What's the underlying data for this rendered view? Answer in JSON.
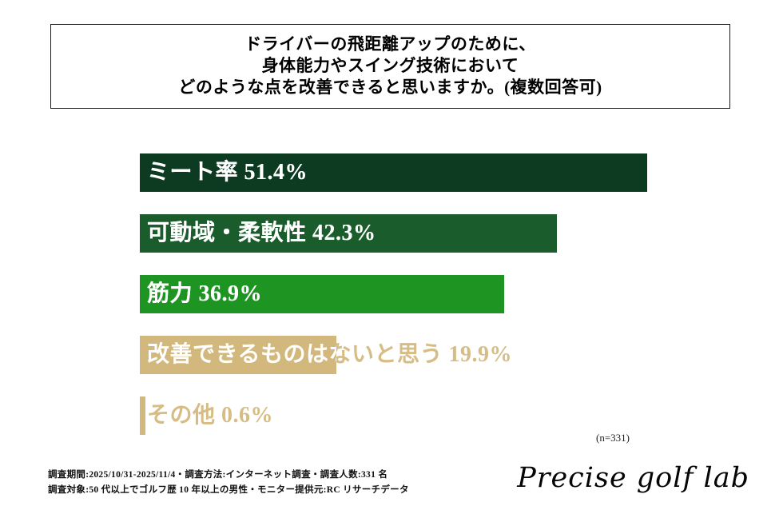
{
  "title": {
    "line1": "ドライバーの飛距離アップのために、",
    "line2": "身体能力やスイング技術において",
    "line3": "どのような点を改善できると思いますか。(複数回答可)"
  },
  "chart_data": {
    "type": "bar",
    "orientation": "horizontal",
    "title": "ドライバーの飛距離アップのために、身体能力やスイング技術においてどのような点を改善できると思いますか。(複数回答可)",
    "categories": [
      "ミート率",
      "可動域・柔軟性",
      "筋力",
      "改善できるものはないと思う",
      "その他"
    ],
    "values": [
      51.4,
      42.3,
      36.9,
      19.9,
      0.6
    ],
    "unit": "%",
    "xlim": [
      0,
      55
    ],
    "grid": false,
    "legend": false,
    "note": "(n=331)",
    "bars": [
      {
        "label": "ミート率",
        "value": 51.4,
        "display": "ミート率 51.4%",
        "color": "#0c3b21",
        "over_color": "#ffffff",
        "under_color": "#ffffff"
      },
      {
        "label": "可動域・柔軟性",
        "value": 42.3,
        "display": "可動域・柔軟性 42.3%",
        "color": "#1b5c2c",
        "over_color": "#ffffff",
        "under_color": "#ffffff"
      },
      {
        "label": "筋力",
        "value": 36.9,
        "display": "筋力 36.9%",
        "color": "#1e9422",
        "over_color": "#ffffff",
        "under_color": "#ffffff"
      },
      {
        "label": "改善できるものはないと思う",
        "value": 19.9,
        "display": "改善できるものはないと思う 19.9%",
        "color": "#d2b87c",
        "over_color": "#ffffff",
        "under_color": "#d6bd85"
      },
      {
        "label": "その他",
        "value": 0.6,
        "display": "その他 0.6%",
        "color": "#d2b87c",
        "over_color": "#ffffff",
        "under_color": "#d6bd85"
      }
    ]
  },
  "footer": {
    "line1": "調査期間:2025/10/31-2025/11/4・調査方法:インターネット調査・調査人数:331 名",
    "line2": "調査対象:50 代以上でゴルフ歴 10 年以上の男性・モニター提供元:RC リサーチデータ",
    "logo": "Precise golf lab"
  }
}
